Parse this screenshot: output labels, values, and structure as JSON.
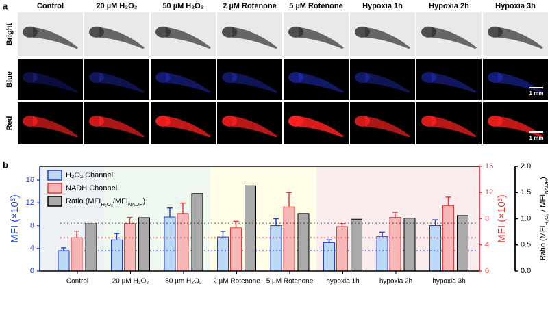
{
  "panel_labels": [
    "a",
    "b"
  ],
  "panel_a": {
    "columns": [
      "Control",
      "20 µM H₂O₂",
      "50 µM H₂O₂",
      "2 µM Rotenone",
      "5 µM Rotenone",
      "Hypoxia 1h",
      "Hypoxia 2h",
      "Hypoxia 3h"
    ],
    "rows": [
      "Bright",
      "Blue",
      "Red"
    ],
    "scale_bars": [
      "1 mm",
      "1 mm"
    ]
  },
  "chart_data": {
    "type": "bar",
    "categories": [
      "Control",
      "20 µM H₂O₂",
      "50 µm H₂O₂",
      "2 µM Rotenone",
      "5 µM Rotenone",
      "hypoxia 1h",
      "hypoxia 2h",
      "hypoxia 3h"
    ],
    "ylabel": "MFI (×10³)",
    "y2label": "MFI (×10³)",
    "y3label": [
      "Ratio (MFI",
      "H₂O₂",
      " / MFI",
      "NADH",
      ")"
    ],
    "ylim": [
      0,
      18.4
    ],
    "yticks": [
      0,
      4,
      8,
      12,
      16
    ],
    "y2lim": [
      0,
      16
    ],
    "y2ticks": [
      0,
      4,
      8,
      12,
      16
    ],
    "y3lim": [
      0,
      2
    ],
    "y3ticks": [
      {
        "value": 0,
        "label": "0.0"
      },
      {
        "value": 0.5,
        "label": "0.5"
      },
      {
        "value": 1,
        "label": "1.0"
      },
      {
        "value": 1.5,
        "label": "1.5"
      },
      {
        "value": 2,
        "label": "2.0"
      }
    ],
    "legend": "upper left",
    "series": [
      {
        "name": "H₂O₂ Channel",
        "color": "#1f3fd6",
        "fill": "#bcd9f7",
        "axis": "y",
        "values": [
          3.6,
          5.5,
          9.5,
          6.0,
          8.0,
          5.0,
          6.1,
          8.0
        ],
        "errors": [
          0.5,
          1.1,
          1.6,
          1.0,
          1.2,
          0.5,
          0.7,
          1.0
        ]
      },
      {
        "name": "NADH Channel",
        "color": "#e8393b",
        "fill": "#f7b7b7",
        "axis": "y2",
        "values": [
          5.1,
          7.3,
          8.8,
          6.6,
          9.8,
          6.8,
          8.2,
          10.0
        ],
        "errors": [
          1.0,
          0.9,
          1.6,
          1.0,
          2.2,
          0.5,
          0.8,
          1.3
        ]
      },
      {
        "name": [
          "Ratio (MFI",
          "H₂O₂",
          "/MFI",
          "NADH",
          ")"
        ],
        "color": "#000000",
        "fill": "#aaaaaa",
        "axis": "y3",
        "values": [
          0.92,
          1.02,
          1.48,
          1.63,
          1.1,
          0.99,
          1.01,
          1.06
        ]
      }
    ]
  }
}
